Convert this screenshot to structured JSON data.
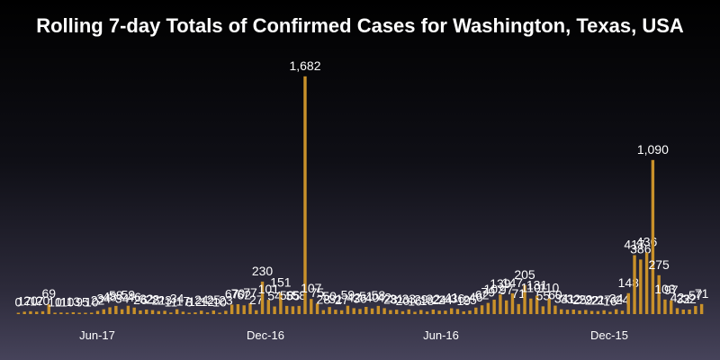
{
  "chart_data": {
    "type": "bar",
    "title": "Rolling 7-day Totals of Confirmed Cases for Washington, Texas, USA",
    "xlabel": "",
    "ylabel": "",
    "ylim": [
      0,
      1700
    ],
    "x_tick_labels": [
      "Jun-17",
      "Dec-16",
      "Jun-16",
      "Dec-15"
    ],
    "bar_color": "#c9912a",
    "values": [
      0,
      17,
      20,
      17,
      20,
      69,
      10,
      11,
      10,
      13,
      9,
      5,
      10,
      22,
      34,
      48,
      58,
      34,
      59,
      46,
      26,
      32,
      28,
      21,
      23,
      11,
      34,
      17,
      8,
      12,
      24,
      12,
      25,
      10,
      23,
      67,
      70,
      62,
      77,
      27,
      230,
      101,
      54,
      151,
      58,
      55,
      58,
      1682,
      107,
      75,
      28,
      50,
      31,
      27,
      59,
      42,
      36,
      51,
      40,
      58,
      42,
      28,
      31,
      20,
      33,
      16,
      29,
      18,
      32,
      24,
      24,
      41,
      36,
      19,
      25,
      46,
      62,
      79,
      102,
      139,
      97,
      147,
      71,
      205,
      110,
      131,
      55,
      110,
      60,
      34,
      31,
      32,
      25,
      29,
      22,
      21,
      27,
      16,
      34,
      24,
      148,
      417,
      386,
      436,
      1090,
      275,
      103,
      97,
      42,
      32,
      32,
      57,
      71
    ]
  }
}
